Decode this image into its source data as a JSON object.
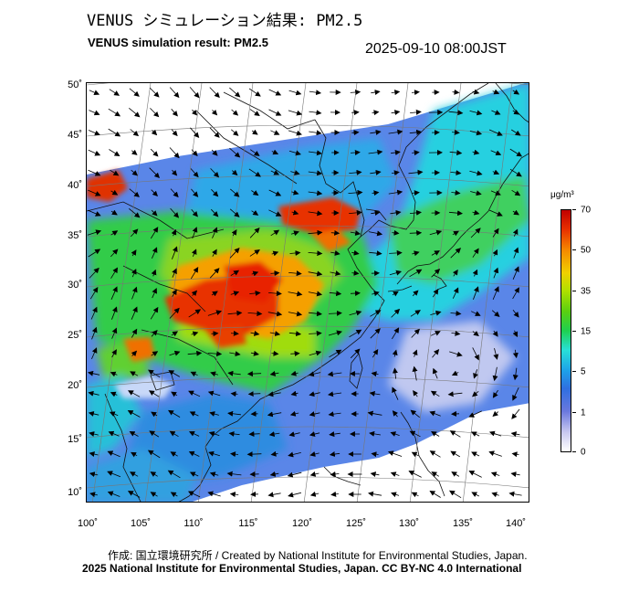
{
  "header": {
    "title_ja": "VENUS シミュレーション結果: PM2.5",
    "title_en": "VENUS simulation result: PM2.5",
    "timestamp": "2025-09-10 08:00JST"
  },
  "map": {
    "variable": "PM2.5",
    "lon_range": [
      100,
      142
    ],
    "lat_range": [
      9,
      51
    ],
    "lat_labels": [
      "50˚",
      "45˚",
      "40˚",
      "35˚",
      "30˚",
      "25˚",
      "20˚",
      "15˚",
      "10˚"
    ],
    "lon_labels": [
      "100˚",
      "105˚",
      "110˚",
      "115˚",
      "120˚",
      "125˚",
      "130˚",
      "135˚",
      "140˚"
    ],
    "wind_vectors": "shown"
  },
  "colorbar": {
    "unit": "μg/m³",
    "ticks": [
      "70",
      "50",
      "35",
      "15",
      "5",
      "1",
      "0"
    ],
    "colors": [
      "#c00000",
      "#f58a00",
      "#f0d000",
      "#1ed050",
      "#28e0d8",
      "#2f6fe0",
      "#ffffff"
    ]
  },
  "footer": {
    "credit_ja_en": "作成: 国立環境研究所 / Created by National Institute for Environmental Studies, Japan.",
    "copyright": "2025 National Institute for Environmental Studies, Japan. CC BY-NC 4.0 International"
  }
}
